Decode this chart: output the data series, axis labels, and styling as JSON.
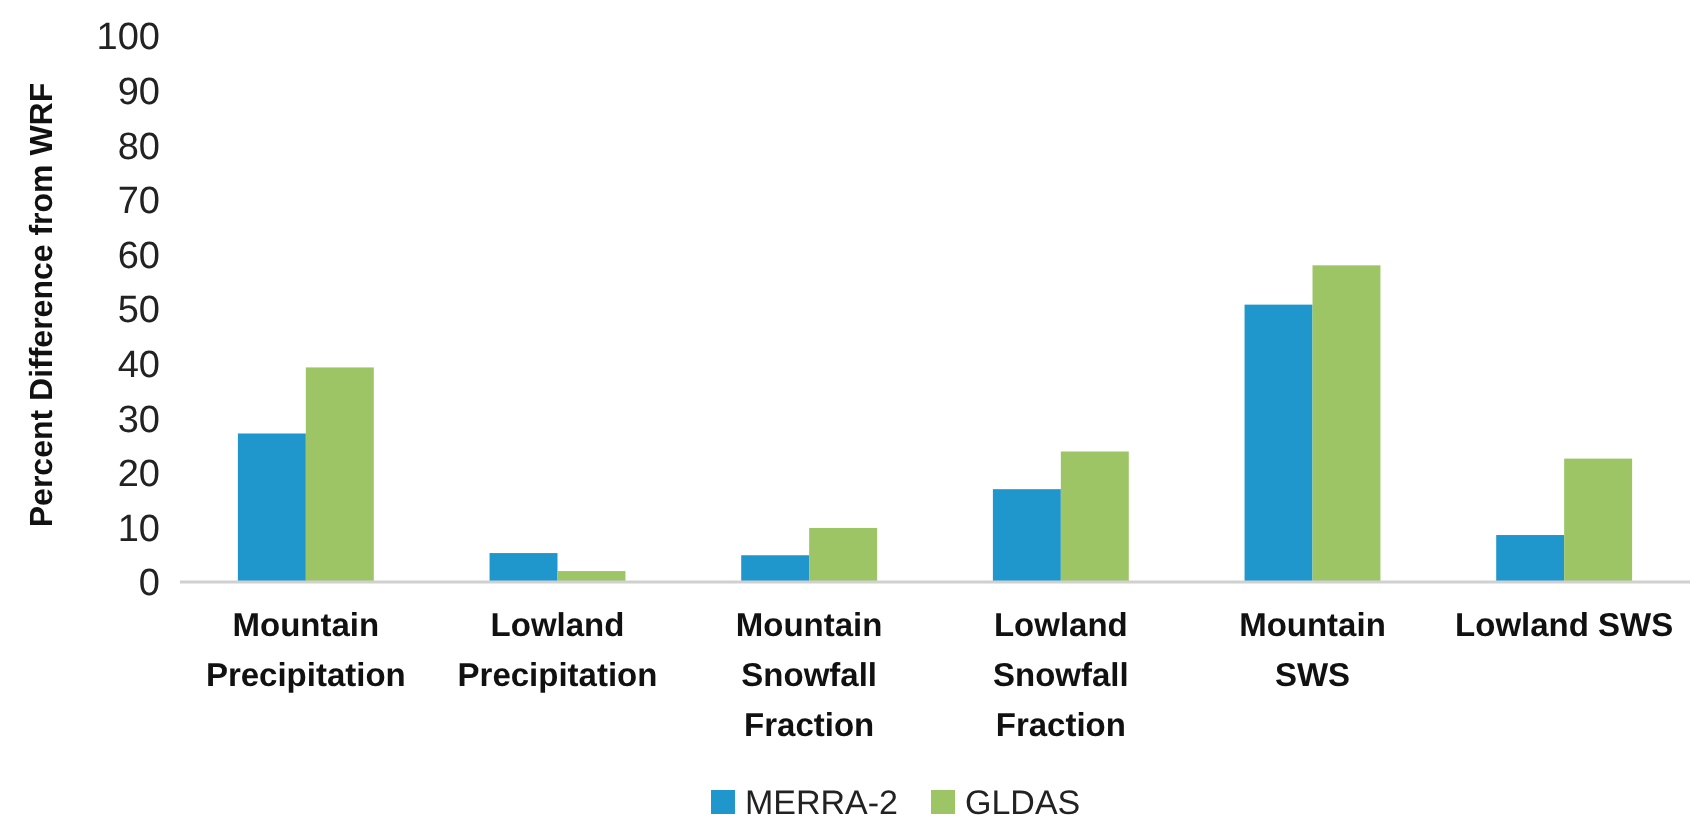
{
  "chart_data": {
    "type": "bar",
    "ylabel": "Percent Difference from WRF",
    "categories": [
      "Mountain\nPrecipitation",
      "Lowland\nPrecipitation",
      "Mountain\nSnowfall\nFraction",
      "Lowland\nSnowfall\nFraction",
      "Mountain\nSWS",
      "Lowland SWS"
    ],
    "series": [
      {
        "name": "MERRA-2",
        "color": "#1f97cc",
        "values": [
          27.2,
          5.3,
          4.9,
          17.0,
          50.8,
          8.6
        ]
      },
      {
        "name": "GLDAS",
        "color": "#9dc566",
        "values": [
          39.3,
          2.0,
          9.9,
          23.9,
          58.0,
          22.6
        ]
      }
    ],
    "ylim": [
      0,
      100
    ],
    "yticks": [
      0,
      10,
      20,
      30,
      40,
      50,
      60,
      70,
      80,
      90,
      100
    ],
    "grid": false,
    "legend": "bottom"
  }
}
